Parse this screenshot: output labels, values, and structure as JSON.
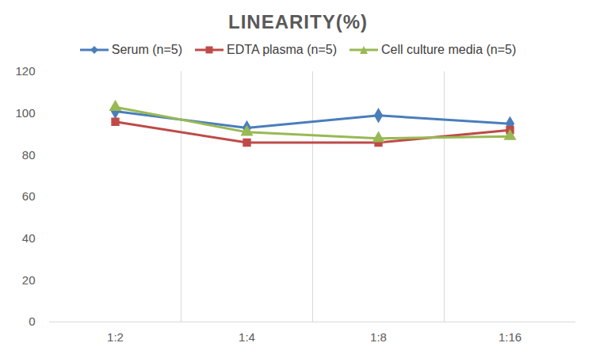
{
  "chart_data": {
    "type": "line",
    "title": "LINEARITY(%)",
    "categories": [
      "1:2",
      "1:4",
      "1:8",
      "1:16"
    ],
    "series": [
      {
        "name": "Serum (n=5)",
        "color": "#4a7ebb",
        "marker": "diamond",
        "values": [
          101,
          93,
          99,
          95
        ]
      },
      {
        "name": "EDTA plasma (n=5)",
        "color": "#be4b48",
        "marker": "square",
        "values": [
          96,
          86,
          86,
          92
        ]
      },
      {
        "name": "Cell culture media (n=5)",
        "color": "#98b954",
        "marker": "triangle",
        "values": [
          103,
          91,
          88,
          89
        ]
      }
    ],
    "ylim": [
      0,
      120
    ],
    "yticks": [
      0,
      20,
      40,
      60,
      80,
      100,
      120
    ],
    "grid": "x",
    "legend": "top"
  }
}
